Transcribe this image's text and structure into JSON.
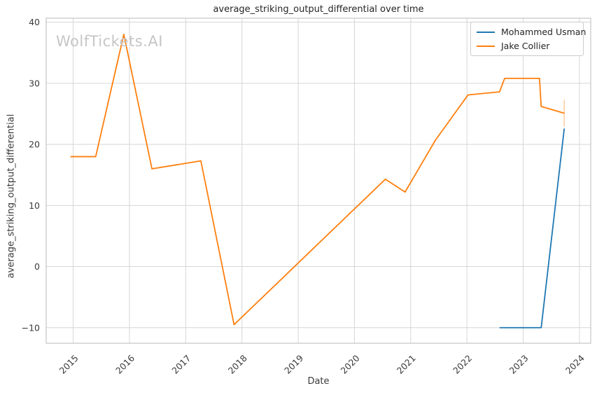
{
  "chart_data": {
    "type": "line",
    "title": "average_striking_output_differential over time",
    "xlabel": "Date",
    "ylabel": "average_striking_output_differential",
    "watermark": "WolfTickets.AI",
    "grid": true,
    "legend_position": "upper right",
    "xlim": [
      2014.52,
      2024.2
    ],
    "ylim": [
      -12.55,
      40.65
    ],
    "xticks": [
      2015,
      2016,
      2017,
      2018,
      2019,
      2020,
      2021,
      2022,
      2023,
      2024
    ],
    "yticks": [
      -10,
      0,
      10,
      20,
      30,
      40
    ],
    "series": [
      {
        "name": "Mohammed Usman",
        "color": "#1f77b4",
        "x": [
          2022.58,
          2023.32,
          2023.73
        ],
        "y": [
          -10.0,
          -10.0,
          22.6
        ]
      },
      {
        "name": "Jake Collier",
        "color": "#ff7f0e",
        "x": [
          2014.95,
          2015.4,
          2015.9,
          2016.4,
          2017.27,
          2017.86,
          2020.55,
          2020.9,
          2021.44,
          2022.02,
          2022.58,
          2022.67,
          2023.29,
          2023.32,
          2023.73
        ],
        "y": [
          18.0,
          18.0,
          38.0,
          16.0,
          17.3,
          -9.5,
          14.3,
          12.2,
          20.7,
          28.1,
          28.6,
          30.8,
          30.8,
          26.2,
          25.1
        ],
        "end_cap": {
          "x": 2023.73,
          "y": 25.1,
          "half_height": 2.2
        }
      }
    ],
    "colors": {
      "grid": "#d6d6d6",
      "spine": "#c4c4c4",
      "tick_label": "#3a3a3a",
      "title_text": "#262626",
      "watermark": "#c6c6c6"
    }
  }
}
